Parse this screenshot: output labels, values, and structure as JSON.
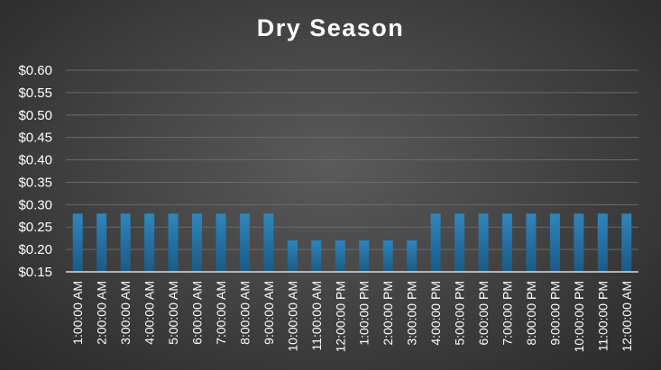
{
  "chart_data": {
    "type": "bar",
    "title": "Dry Season",
    "xlabel": "",
    "ylabel": "",
    "ylim": [
      0.15,
      0.6
    ],
    "y_ticks": [
      "$0.15",
      "$0.20",
      "$0.25",
      "$0.30",
      "$0.35",
      "$0.40",
      "$0.45",
      "$0.50",
      "$0.55",
      "$0.60"
    ],
    "grid": true,
    "legend": "none",
    "colors": {
      "bar": "#1f6391",
      "bar_highlight": "#2f86bd",
      "grid": "#6a6a6a",
      "axis": "#d9d9d9",
      "text": "#ffffff"
    },
    "categories": [
      "1:00:00 AM",
      "2:00:00 AM",
      "3:00:00 AM",
      "4:00:00 AM",
      "5:00:00 AM",
      "6:00:00 AM",
      "7:00:00 AM",
      "8:00:00 AM",
      "9:00:00 AM",
      "10:00:00 AM",
      "11:00:00 AM",
      "12:00:00 PM",
      "1:00:00 PM",
      "2:00:00 PM",
      "3:00:00 PM",
      "4:00:00 PM",
      "5:00:00 PM",
      "6:00:00 PM",
      "7:00:00 PM",
      "8:00:00 PM",
      "9:00:00 PM",
      "10:00:00 PM",
      "11:00:00 PM",
      "12:00:00 AM"
    ],
    "values": [
      0.28,
      0.28,
      0.28,
      0.28,
      0.28,
      0.28,
      0.28,
      0.28,
      0.28,
      0.22,
      0.22,
      0.22,
      0.22,
      0.22,
      0.22,
      0.28,
      0.28,
      0.28,
      0.28,
      0.28,
      0.28,
      0.28,
      0.28,
      0.28
    ]
  }
}
